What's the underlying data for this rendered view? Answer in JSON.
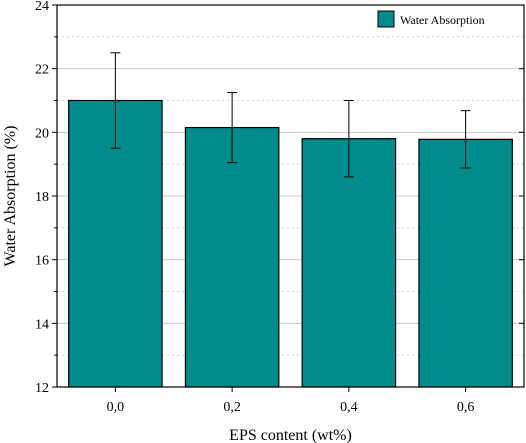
{
  "chart_data": {
    "type": "bar",
    "categories": [
      "0,0",
      "0,2",
      "0,4",
      "0,6"
    ],
    "series": [
      {
        "name": "Water Absorption",
        "values": [
          21.0,
          20.15,
          19.8,
          19.78
        ],
        "error": [
          1.5,
          1.1,
          1.2,
          0.9
        ]
      }
    ],
    "xlabel": "EPS content (wt%)",
    "ylabel": "Water Absorption (%)",
    "ylim": [
      12,
      24
    ],
    "yticks": [
      12,
      14,
      16,
      18,
      20,
      22,
      24
    ],
    "grid": true,
    "legend": "top-right",
    "colors": {
      "bar": "#008b8b",
      "bar_stroke": "#000000",
      "grid": "#c8c8c8"
    }
  }
}
